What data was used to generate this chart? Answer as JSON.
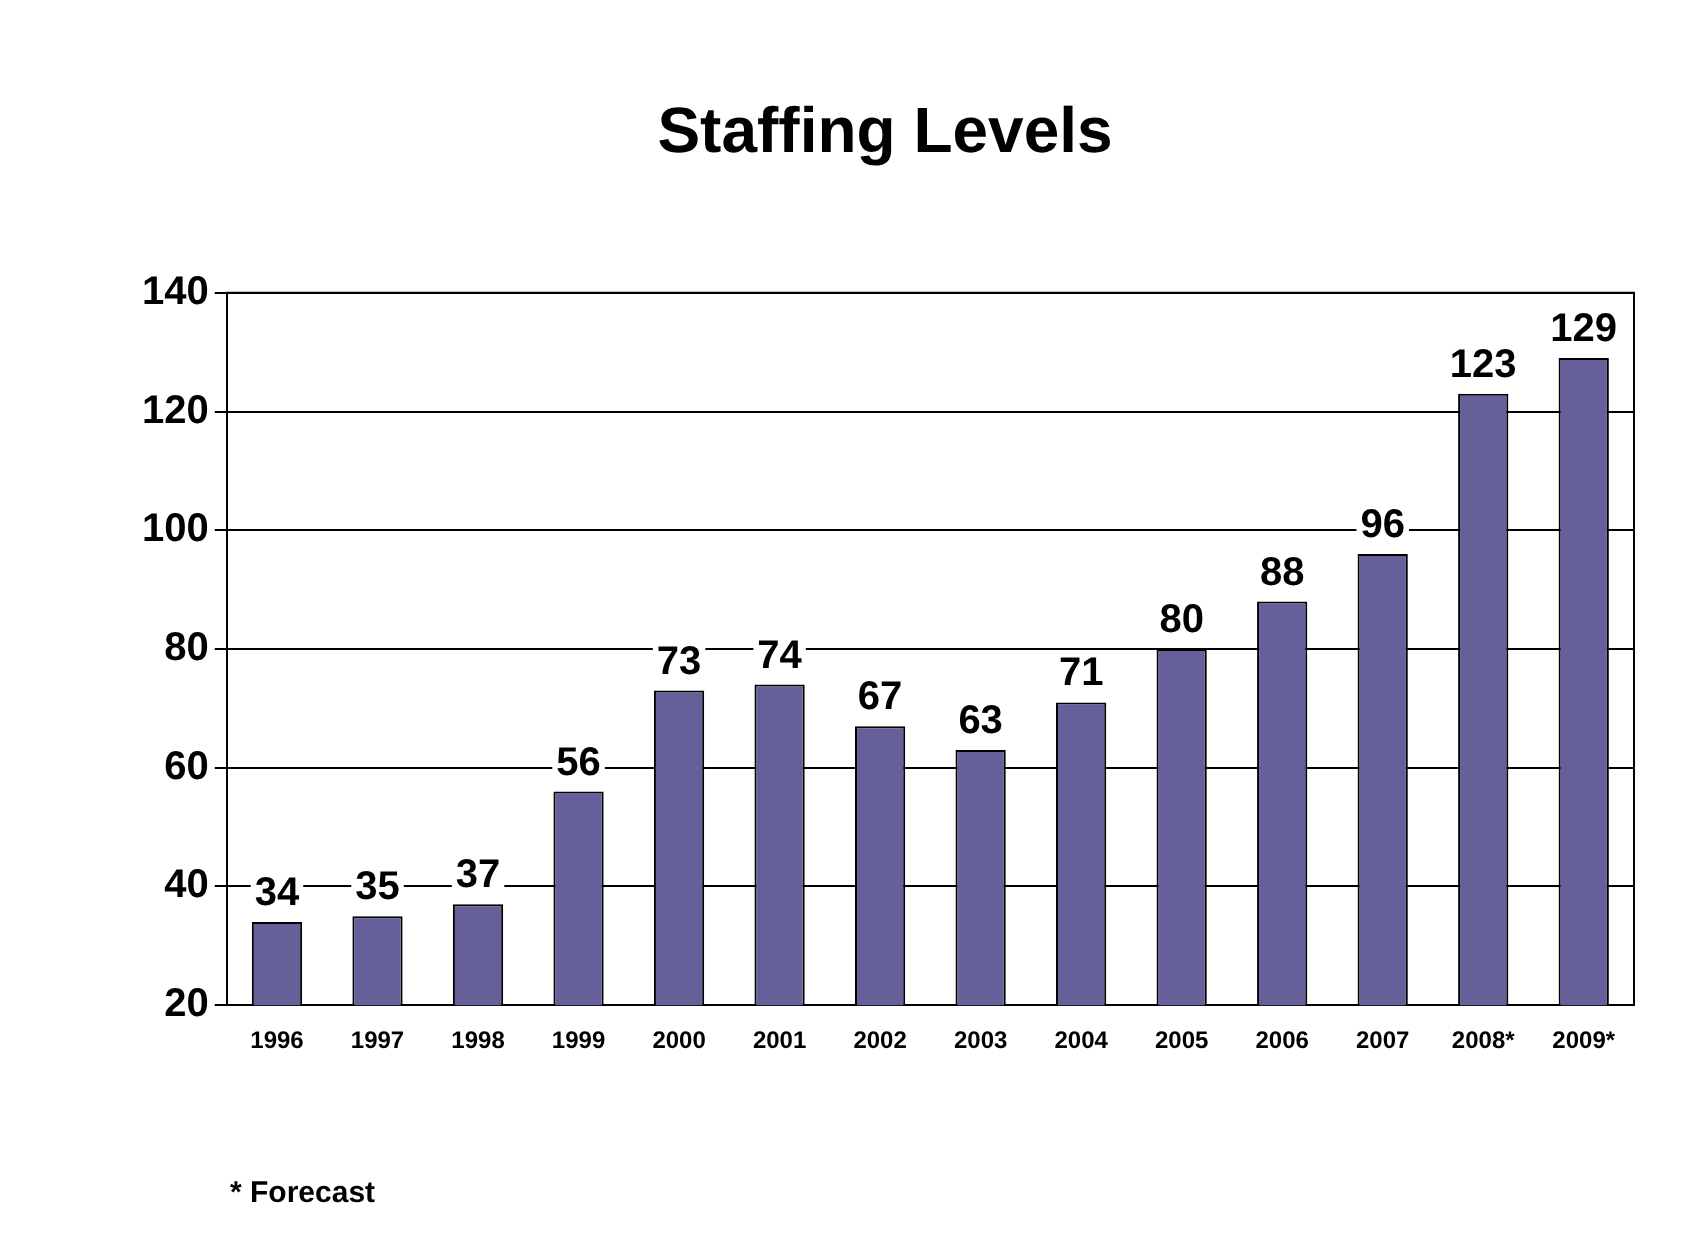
{
  "chart_data": {
    "type": "bar",
    "title": "Staffing Levels",
    "categories": [
      "1996",
      "1997",
      "1998",
      "1999",
      "2000",
      "2001",
      "2002",
      "2003",
      "2004",
      "2005",
      "2006",
      "2007",
      "2008*",
      "2009*"
    ],
    "values": [
      34,
      35,
      37,
      56,
      73,
      74,
      67,
      63,
      71,
      80,
      88,
      96,
      123,
      129
    ],
    "color": "#65609a",
    "ylim": [
      20,
      140
    ],
    "yticks": [
      20,
      40,
      60,
      80,
      100,
      120,
      140
    ],
    "grid": "y",
    "data_labels": true,
    "annotations": [
      "* Forecast"
    ]
  }
}
